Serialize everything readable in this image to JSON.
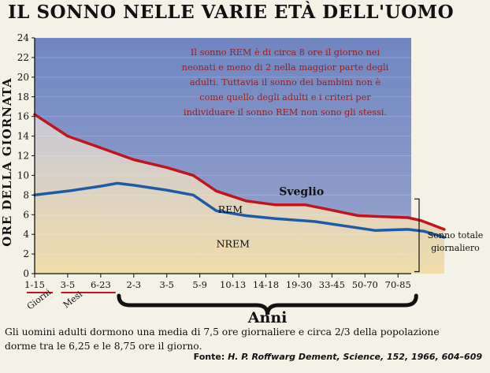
{
  "chart_data": {
    "type": "line",
    "title": "IL SONNO NELLE VARIE ETÀ DELL'UOMO",
    "ylabel": "ORE DELLA GIORNATA",
    "xlabel": "Anni",
    "ylim": [
      0,
      24
    ],
    "y_ticks": [
      0,
      2,
      4,
      6,
      8,
      10,
      12,
      14,
      16,
      18,
      20,
      22,
      24
    ],
    "categories": [
      "1-15",
      "3-5",
      "6-23",
      "2-3",
      "3-5",
      "5-9",
      "10-13",
      "14-18",
      "19-30",
      "33-45",
      "50-70",
      "70-85"
    ],
    "category_groups": [
      "Giorni",
      "Mesi"
    ],
    "series": [
      {
        "name": "Sonno totale giornaliero",
        "color": "#c0141e",
        "points": [
          [
            0,
            16.2
          ],
          [
            1,
            14.0
          ],
          [
            2,
            12.8
          ],
          [
            3,
            11.6
          ],
          [
            4,
            10.8
          ],
          [
            4.8,
            10.0
          ],
          [
            5.5,
            8.4
          ],
          [
            6.4,
            7.4
          ],
          [
            7.3,
            7.0
          ],
          [
            8.2,
            7.0
          ],
          [
            8.8,
            6.6
          ],
          [
            9.8,
            5.9
          ],
          [
            11.3,
            5.7
          ],
          [
            11.7,
            5.4
          ],
          [
            12.4,
            4.5
          ]
        ]
      },
      {
        "name": "NREM",
        "color": "#1f5aa6",
        "points": [
          [
            0,
            8.0
          ],
          [
            1,
            8.4
          ],
          [
            2,
            8.9
          ],
          [
            2.5,
            9.2
          ],
          [
            3,
            9.0
          ],
          [
            4,
            8.5
          ],
          [
            4.8,
            8.0
          ],
          [
            5.5,
            6.4
          ],
          [
            6.4,
            5.9
          ],
          [
            7.3,
            5.6
          ],
          [
            8.5,
            5.3
          ],
          [
            10.3,
            4.4
          ],
          [
            11.3,
            4.5
          ],
          [
            11.8,
            4.3
          ],
          [
            12.4,
            3.7
          ]
        ]
      }
    ],
    "region_labels": {
      "awake": "Sveglio",
      "rem": "REM",
      "nrem": "NREM",
      "total_bracket": [
        "Sonno totale",
        "giornaliero"
      ]
    },
    "annotation": [
      "Il sonno REM è di circa 8 ore il giorno nei",
      "neonati e meno di 2 nella maggior parte degli",
      "adulti. Tuttavia il sonno dei bambini non è",
      "come quello degli adulti e i criteri per",
      "individuare il sonno REM non sono gli stessi."
    ],
    "colors": {
      "awake_top": "#6f86c2",
      "awake_bottom": "#9aa6cc",
      "sleep_top": "#c7c8d7",
      "sleep_bottom": "#f1dcaa",
      "annotation_text": "#9b1c1c"
    }
  },
  "footer": {
    "note_line1": "Gli uomini adulti  dormono una media di 7,5 ore giornaliere e circa 2/3 della popolazione",
    "note_line2": "dorme tra le 6,25 e le 8,75 ore il giorno.",
    "source_label": "Fonte:",
    "source_text": "H. P. Roffwarg Dement, Science, 152, 1966, 604–609"
  }
}
